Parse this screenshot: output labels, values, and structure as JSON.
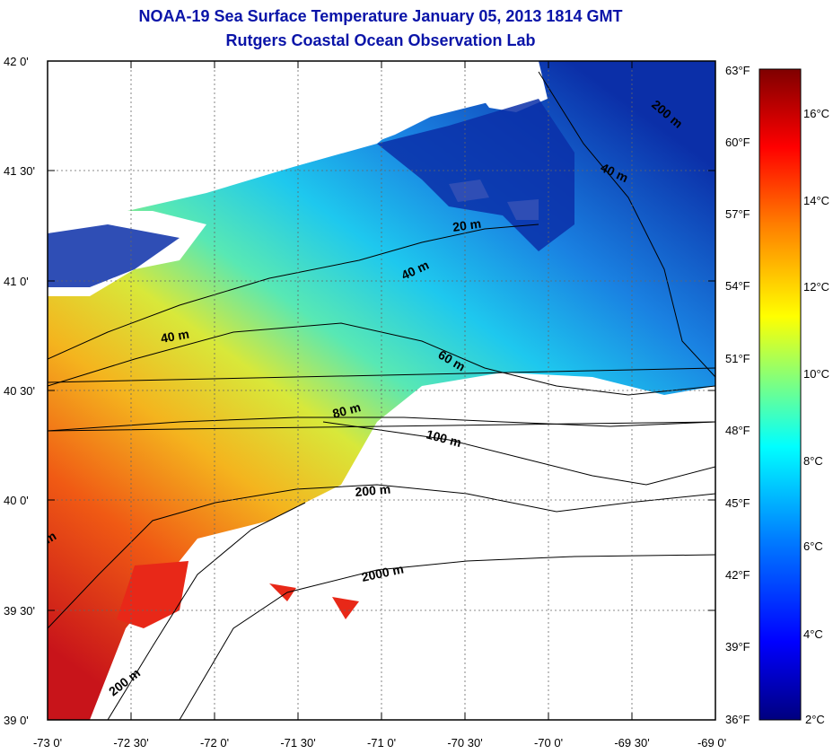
{
  "title_line1": "NOAA-19 Sea Surface Temperature January 05, 2013 1814 GMT",
  "title_line2": "Rutgers Coastal Ocean Observation Lab",
  "lat_labels": [
    "42 0'",
    "41 30'",
    "41 0'",
    "40 30'",
    "40 0'",
    "39 30'",
    "39 0'"
  ],
  "lon_labels": [
    "-73 0'",
    "-72 30'",
    "-72 0'",
    "-71 30'",
    "-71 0'",
    "-70 30'",
    "-70 0'",
    "-69 30'",
    "-69 0'"
  ],
  "fahrenheit_labels": [
    "63°F",
    "60°F",
    "57°F",
    "54°F",
    "51°F",
    "48°F",
    "45°F",
    "42°F",
    "39°F",
    "36°F"
  ],
  "celsius_labels": [
    "16°C",
    "14°C",
    "12°C",
    "10°C",
    "8°C",
    "6°C",
    "4°C",
    "2°C"
  ],
  "contour_labels": [
    "200 m",
    "40 m",
    "20 m",
    "40 m",
    "40 m",
    "60 m",
    "80 m",
    "100 m",
    "200 m",
    "2000 m",
    "200 m",
    "m"
  ],
  "colors": {
    "title": "#0a14a8",
    "land": "#ffffff",
    "cold": "#0b2fa8",
    "warm": "#e8261a",
    "colormap": [
      "#00007f",
      "#0000ff",
      "#007fff",
      "#00ffff",
      "#7fff7f",
      "#ffff00",
      "#ff7f00",
      "#ff0000",
      "#7f0000"
    ]
  }
}
